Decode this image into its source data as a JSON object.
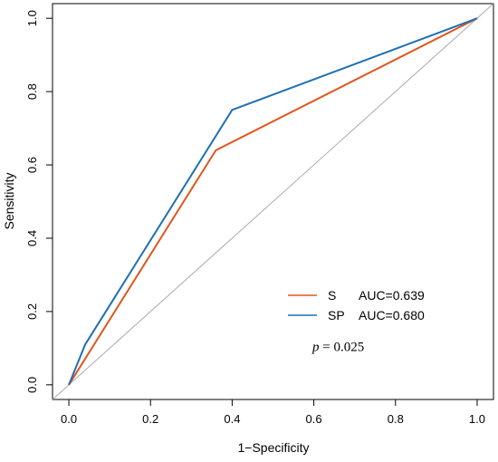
{
  "chart_data": {
    "type": "line",
    "xlabel": "1−Specificity",
    "ylabel": "Sensitivity",
    "xlim": [
      -0.04,
      1.04
    ],
    "ylim": [
      -0.04,
      1.04
    ],
    "xticks": [
      "0.0",
      "0.2",
      "0.4",
      "0.6",
      "0.8",
      "1.0"
    ],
    "yticks": [
      "0.0",
      "0.2",
      "0.4",
      "0.6",
      "0.8",
      "1.0"
    ],
    "grid": false,
    "legend_position": "bottom-right",
    "reference_line": {
      "from": [
        -0.04,
        -0.04
      ],
      "to": [
        1.04,
        1.04
      ],
      "color": "#aaaaaa"
    },
    "series": [
      {
        "name": "S",
        "auc_label": "AUC=0.639",
        "color": "#e0561c",
        "x": [
          0.0,
          0.36,
          1.0
        ],
        "y": [
          0.0,
          0.64,
          1.0
        ]
      },
      {
        "name": "SP",
        "auc_label": "AUC=0.680",
        "color": "#1f6fb2",
        "x": [
          0.0,
          0.04,
          0.4,
          1.0
        ],
        "y": [
          0.0,
          0.11,
          0.75,
          1.0
        ]
      }
    ],
    "annotation": {
      "italic": "p",
      "text": " = 0.025",
      "x": 0.66,
      "y": 0.105
    }
  }
}
